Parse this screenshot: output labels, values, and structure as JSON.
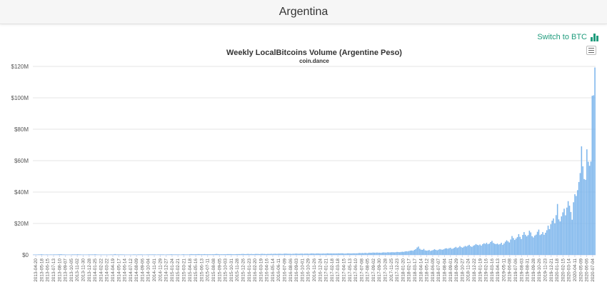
{
  "header": {
    "title": "Argentina"
  },
  "toolbar": {
    "switch_label": "Switch to BTC",
    "switch_icon": "bar-chart-icon",
    "menu_icon": "hamburger-menu-icon"
  },
  "colors": {
    "bar": "#7cb5ec",
    "accent": "#1f9c7d",
    "grid": "#e6e6e6"
  },
  "chart_data": {
    "type": "bar",
    "title": "Weekly LocalBitcoins Volume (Argentine Peso)",
    "subtitle": "coin.dance",
    "xlabel": "",
    "ylabel": "",
    "ylim": [
      0,
      120000000
    ],
    "y_ticks": [
      {
        "value": 0,
        "label": "$0"
      },
      {
        "value": 20000000,
        "label": "$20M"
      },
      {
        "value": 40000000,
        "label": "$40M"
      },
      {
        "value": 60000000,
        "label": "$60M"
      },
      {
        "value": 80000000,
        "label": "$80M"
      },
      {
        "value": 100000000,
        "label": "$100M"
      },
      {
        "value": 120000000,
        "label": "$120M"
      }
    ],
    "grid": true,
    "legend": "none",
    "x_tick_labels": [
      "2013-04-20",
      "2013-05-18",
      "2013-06-15",
      "2013-07-13",
      "2013-08-10",
      "2013-09-07",
      "2013-10-05",
      "2013-11-02",
      "2013-11-30",
      "2013-12-28",
      "2014-01-25",
      "2014-02-22",
      "2014-03-22",
      "2014-04-19",
      "2014-05-17",
      "2014-06-14",
      "2014-07-12",
      "2014-08-09",
      "2014-09-06",
      "2014-10-04",
      "2014-11-01",
      "2014-11-29",
      "2014-12-27",
      "2015-01-24",
      "2015-02-21",
      "2015-03-21",
      "2015-04-18",
      "2015-05-16",
      "2015-06-13",
      "2015-07-11",
      "2015-08-08",
      "2015-09-05",
      "2015-10-03",
      "2015-10-31",
      "2015-11-28",
      "2015-12-26",
      "2016-01-23",
      "2016-02-20",
      "2016-03-19",
      "2016-04-16",
      "2016-05-14",
      "2016-06-11",
      "2016-07-09",
      "2016-08-06",
      "2016-09-03",
      "2016-10-01",
      "2016-10-29",
      "2016-11-26",
      "2016-12-24",
      "2017-01-21",
      "2017-02-18",
      "2017-03-18",
      "2017-04-15",
      "2017-05-13",
      "2017-06-10",
      "2017-07-08",
      "2017-08-05",
      "2017-09-02",
      "2017-09-30",
      "2017-10-28",
      "2017-11-25",
      "2017-12-23",
      "2018-01-20",
      "2018-02-17",
      "2018-03-17",
      "2018-04-14",
      "2018-05-12",
      "2018-06-09",
      "2018-07-07",
      "2018-08-04",
      "2018-09-01",
      "2018-09-29",
      "2018-10-27",
      "2018-11-24",
      "2018-12-22",
      "2019-01-19",
      "2019-02-16",
      "2019-03-16",
      "2019-04-13",
      "2019-05-11",
      "2019-06-08",
      "2019-07-06",
      "2019-08-03",
      "2019-08-31",
      "2019-09-28",
      "2019-10-26",
      "2019-11-23",
      "2019-12-21",
      "2020-01-18",
      "2020-02-15",
      "2020-03-14",
      "2020-04-11",
      "2020-05-09",
      "2020-06-06",
      "2020-07-04"
    ],
    "values_millions": [
      0.2,
      0.2,
      0.2,
      0.2,
      0.3,
      0.3,
      0.4,
      0.3,
      0.2,
      0.2,
      0.3,
      0.2,
      0.2,
      0.3,
      0.2,
      0.3,
      0.3,
      0.3,
      0.3,
      0.4,
      0.4,
      0.4,
      0.3,
      0.3,
      0.2,
      0.2,
      0.2,
      0.2,
      0.2,
      0.3,
      0.3,
      0.3,
      0.3,
      0.4,
      0.3,
      0.3,
      0.2,
      0.2,
      0.2,
      0.2,
      0.2,
      0.3,
      0.3,
      0.3,
      0.3,
      0.3,
      0.4,
      0.3,
      0.2,
      0.2,
      0.2,
      0.2,
      0.2,
      0.2,
      0.2,
      0.2,
      0.2,
      0.2,
      0.3,
      0.2,
      0.3,
      0.5,
      0.3,
      0.3,
      0.3,
      0.3,
      0.3,
      0.3,
      0.2,
      0.2,
      0.2,
      0.2,
      0.2,
      0.2,
      0.2,
      0.3,
      0.3,
      0.2,
      0.3,
      0.3,
      0.3,
      0.3,
      0.2,
      0.2,
      0.2,
      0.3,
      0.3,
      0.3,
      0.3,
      0.3,
      0.3,
      0.3,
      0.2,
      0.3,
      0.3,
      0.3,
      0.3,
      0.3,
      0.2,
      0.2,
      0.3,
      0.3,
      0.3,
      0.4,
      0.3,
      0.3,
      0.3,
      0.3,
      0.3,
      0.3,
      0.2,
      0.3,
      0.4,
      0.3,
      0.3,
      0.3,
      0.3,
      0.4,
      0.5,
      0.4,
      0.4,
      0.4,
      0.4,
      0.5,
      0.5,
      0.4,
      0.4,
      0.4,
      0.5,
      0.4,
      0.4,
      0.4,
      0.4,
      0.4,
      0.4,
      0.4,
      0.5,
      0.6,
      0.5,
      0.4,
      0.4,
      0.4,
      0.4,
      0.4,
      0.4,
      0.5,
      0.5,
      0.5,
      0.5,
      0.4,
      0.4,
      0.4,
      0.5,
      0.5,
      0.5,
      0.5,
      0.6,
      0.6,
      0.5,
      0.5,
      0.6,
      0.6,
      0.5,
      0.6,
      0.5,
      0.5,
      0.6,
      0.6,
      0.6,
      0.5,
      0.6,
      0.7,
      0.6,
      0.6,
      0.5,
      0.6,
      0.6,
      0.6,
      0.7,
      0.6,
      0.7,
      0.7,
      0.6,
      0.7,
      0.7,
      0.7,
      0.6,
      0.7,
      0.8,
      0.8,
      0.7,
      0.7,
      0.7,
      0.6,
      0.7,
      0.7,
      0.8,
      0.8,
      0.7,
      0.7,
      0.8,
      0.8,
      0.7,
      0.8,
      0.8,
      0.8,
      0.7,
      0.8,
      0.9,
      0.9,
      0.8,
      0.8,
      0.9,
      0.9,
      0.8,
      0.8,
      0.8,
      0.9,
      0.8,
      0.9,
      1.0,
      0.9,
      0.9,
      0.9,
      0.9,
      0.9,
      0.9,
      0.9,
      1.0,
      0.9,
      1.0,
      1.0,
      0.9,
      0.8,
      0.9,
      1.0,
      1.0,
      0.9,
      0.9,
      1.0,
      1.0,
      1.0,
      1.0,
      1.1,
      1.2,
      1.1,
      1.2,
      1.1,
      1.3,
      1.2,
      1.1,
      1.4,
      1.3,
      1.3,
      1.5,
      1.4,
      1.4,
      1.5,
      1.4,
      1.4,
      1.3,
      1.5,
      1.6,
      1.5,
      1.5,
      1.7,
      1.6,
      1.6,
      1.7,
      1.7,
      1.6,
      1.7,
      1.9,
      1.8,
      1.7,
      1.9,
      2.0,
      1.9,
      2.2,
      2.3,
      2.2,
      2.5,
      2.7,
      2.8,
      2.6,
      3.2,
      3.7,
      4.7,
      5.3,
      3.9,
      3.3,
      3.2,
      3.8,
      2.9,
      2.7,
      2.8,
      3.1,
      2.5,
      2.8,
      3.1,
      3.6,
      3.2,
      2.9,
      3.3,
      3.7,
      3.4,
      3.3,
      3.6,
      4.1,
      4.2,
      3.9,
      4.3,
      4.5,
      3.8,
      4.1,
      4.6,
      5.1,
      4.4,
      4.8,
      5.6,
      4.9,
      4.6,
      5.2,
      5.7,
      5.3,
      5.9,
      6.4,
      5.5,
      5.1,
      5.8,
      6.2,
      6.9,
      6.4,
      6.1,
      6.6,
      5.9,
      6.8,
      7.4,
      7.0,
      7.7,
      6.8,
      7.2,
      8.2,
      8.9,
      7.6,
      7.1,
      6.8,
      7.2,
      6.6,
      6.9,
      7.7,
      6.4,
      7.3,
      8.4,
      9.3,
      8.6,
      7.9,
      9.8,
      12.0,
      10.7,
      9.5,
      10.4,
      11.3,
      13.2,
      11.5,
      10.1,
      12.7,
      14.5,
      12.8,
      11.8,
      12.6,
      15.4,
      14.3,
      11.9,
      11.1,
      12.3,
      12.9,
      14.7,
      16.1,
      12.6,
      13.2,
      14.5,
      12.8,
      14.1,
      15.7,
      18.6,
      16.4,
      19.5,
      21.8,
      23.2,
      20.1,
      25.3,
      32.4,
      22.6,
      21.3,
      24.5,
      27.1,
      29.4,
      25.2,
      30.1,
      34.2,
      31.3,
      27.3,
      22.4,
      33.5,
      38.6,
      37.5,
      41.2,
      46.4,
      52.1,
      69.1,
      56.4,
      48.3,
      47.8,
      67.2,
      59.3,
      56.7,
      59.4,
      101.3,
      101.6,
      119.3
    ]
  }
}
